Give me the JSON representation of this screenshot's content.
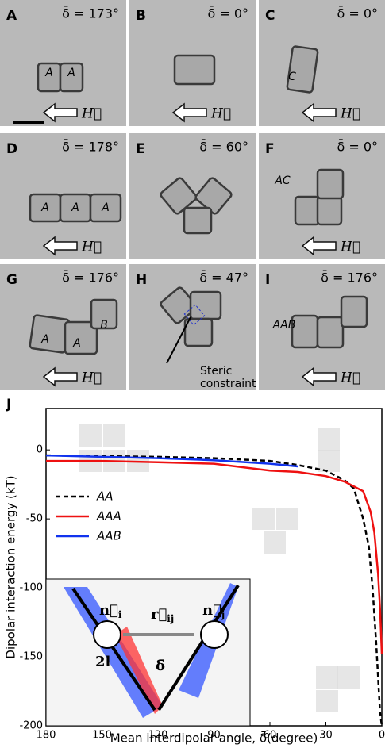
{
  "panels": [
    {
      "letter": "A",
      "delta": "δ̄ = 173°",
      "labels": [
        "A",
        "A"
      ],
      "field": "H⃗"
    },
    {
      "letter": "B",
      "delta": "δ̄ = 0°",
      "labels": [],
      "field": "H⃗"
    },
    {
      "letter": "C",
      "delta": "δ̄ = 0°",
      "labels": [
        "C"
      ],
      "field": "H⃗"
    },
    {
      "letter": "D",
      "delta": "δ̄ = 178°",
      "labels": [
        "A",
        "A",
        "A"
      ],
      "field": "H⃗"
    },
    {
      "letter": "E",
      "delta": "δ̄ = 60°",
      "labels": []
    },
    {
      "letter": "F",
      "delta": "δ̄ = 0°",
      "labels": [
        "AC"
      ],
      "field": "H⃗"
    },
    {
      "letter": "G",
      "delta": "δ̄ = 176°",
      "labels": [
        "A",
        "A",
        "B"
      ],
      "field": "H⃗"
    },
    {
      "letter": "H",
      "delta": "δ̄ = 47°",
      "labels": [
        "Steric",
        "constraint"
      ]
    },
    {
      "letter": "I",
      "delta": "δ̄ = 176°",
      "labels": [
        "AAB"
      ],
      "field": "H⃗"
    }
  ],
  "chart_data": {
    "type": "line",
    "panel_label": "J",
    "x_label": "Mean interdipolar angle, δ̄(degree)",
    "y_label": "Dipolar interaction energy (kT)",
    "xlim": [
      180,
      0
    ],
    "ylim": [
      -200,
      30
    ],
    "xticks": [
      180,
      150,
      120,
      90,
      60,
      30,
      0
    ],
    "yticks": [
      0,
      -50,
      -100,
      -150,
      -200
    ],
    "series": [
      {
        "name": "AA",
        "color": "#000000",
        "dash": true,
        "x": [
          180,
          120,
          90,
          60,
          45,
          30,
          20,
          15,
          10,
          7,
          5,
          3,
          2,
          1,
          0
        ],
        "values": [
          -4,
          -5,
          -6,
          -8,
          -11,
          -15,
          -22,
          -28,
          -50,
          -70,
          -100,
          -140,
          -165,
          -190,
          -200
        ]
      },
      {
        "name": "AAA",
        "color": "#ee1111",
        "dash": false,
        "x": [
          180,
          150,
          120,
          90,
          60,
          45,
          30,
          20,
          10,
          6,
          4,
          2,
          1,
          0.5,
          0
        ],
        "values": [
          -8,
          -8,
          -9,
          -10,
          -15,
          -16,
          -19,
          -23,
          -30,
          -45,
          -60,
          -90,
          -115,
          -130,
          -148
        ]
      },
      {
        "name": "AAB",
        "color": "#1133ee",
        "dash": false,
        "x": [
          180,
          150,
          120,
          90,
          60,
          45
        ],
        "values": [
          -4,
          -5,
          -6,
          -7.5,
          -10,
          -12
        ]
      }
    ],
    "inset_labels": [
      {
        "main": "n⃗",
        "sub": "i"
      },
      {
        "main": "r⃗",
        "sub": "ij"
      },
      {
        "main": "n⃗",
        "sub": "j"
      },
      {
        "main": "2l"
      },
      {
        "main": "δ̄"
      }
    ]
  }
}
